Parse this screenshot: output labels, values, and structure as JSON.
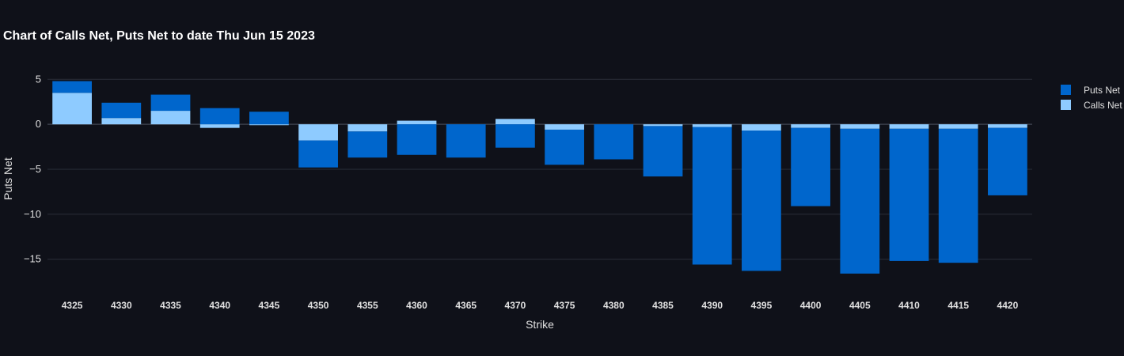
{
  "chart_data": {
    "type": "bar",
    "barmode": "relative",
    "title": "Chart of Calls Net, Puts Net to date Thu Jun 15 2023",
    "xlabel": "Strike",
    "ylabel": "Puts Net",
    "ylim": [
      -18.2,
      5.2
    ],
    "yticks": [
      5,
      0,
      -5,
      -10,
      -15
    ],
    "ytick_labels": [
      "5",
      "0",
      "−5",
      "−10",
      "−15"
    ],
    "categories": [
      "4325",
      "4330",
      "4335",
      "4340",
      "4345",
      "4350",
      "4355",
      "4360",
      "4365",
      "4370",
      "4375",
      "4380",
      "4385",
      "4390",
      "4395",
      "4400",
      "4405",
      "4410",
      "4415",
      "4420"
    ],
    "series": [
      {
        "name": "Puts Net",
        "color": "#0066cc",
        "values": [
          1.3,
          1.7,
          1.8,
          1.8,
          1.4,
          -3.0,
          -2.9,
          -3.4,
          -3.7,
          -2.6,
          -3.9,
          -3.9,
          -5.6,
          -15.3,
          -15.6,
          -8.7,
          -16.1,
          -14.7,
          -14.9,
          -7.5
        ]
      },
      {
        "name": "Calls Net",
        "color": "#8ecbff",
        "values": [
          3.5,
          0.7,
          1.5,
          -0.4,
          -0.1,
          -1.8,
          -0.8,
          0.4,
          0.0,
          0.6,
          -0.6,
          0.0,
          -0.2,
          -0.3,
          -0.7,
          -0.4,
          -0.5,
          -0.5,
          -0.5,
          -0.4
        ]
      }
    ],
    "legend_position": "top-right"
  }
}
